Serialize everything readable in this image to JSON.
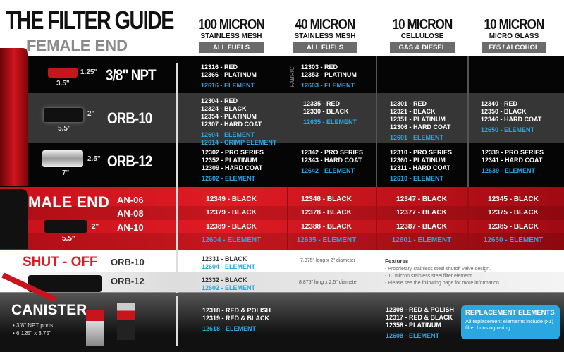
{
  "header": {
    "title": "THE FILTER GUIDE",
    "subtitle": "FEMALE END"
  },
  "columns": [
    {
      "micron": "100 MICRON",
      "media": "STAINLESS MESH",
      "fuel": "ALL FUELS"
    },
    {
      "micron": "40 MICRON",
      "media": "STAINLESS MESH",
      "fuel": "ALL FUELS"
    },
    {
      "micron": "10 MICRON",
      "media": "CELLULOSE",
      "fuel": "GAS & DIESEL"
    },
    {
      "micron": "10 MICRON",
      "media": "MICRO GLASS",
      "fuel": "E85 / ALCOHOL"
    }
  ],
  "female_rows": [
    {
      "label": "3/8\" NPT",
      "height": "1.25\"",
      "length": "3.5\"",
      "fabric_label": "FABRIC",
      "cells": [
        {
          "items": [
            "12316 - RED",
            "12366 - PLATINUM"
          ],
          "elements": [
            "12616 - ELEMENT"
          ]
        },
        {
          "items": [
            "12303 - RED",
            "12353 - PLATINUM"
          ],
          "elements": [
            "12603 - ELEMENT"
          ]
        },
        {
          "items": [],
          "elements": []
        },
        {
          "items": [],
          "elements": []
        }
      ]
    },
    {
      "label": "ORB-10",
      "height": "2\"",
      "length": "5.5\"",
      "cells": [
        {
          "items": [
            "12304 - RED",
            "12324 - BLACK",
            "12354 - PLATINUM",
            "12307 - HARD COAT"
          ],
          "elements": [
            "12604 - ELEMENT",
            "12614 - CRIMP ELEMENT"
          ]
        },
        {
          "items": [
            "12335 - RED",
            "12330 - BLACK"
          ],
          "elements": [
            "12635 - ELEMENT"
          ]
        },
        {
          "items": [
            "12301 - RED",
            "12321 - BLACK",
            "12351 - PLATINUM",
            "12306 - HARD COAT"
          ],
          "elements": [
            "12601 - ELEMENT"
          ]
        },
        {
          "items": [
            "12340 - RED",
            "12350 - BLACK",
            "12346 - HARD COAT"
          ],
          "elements": [
            "12650 - ELEMENT"
          ]
        }
      ]
    },
    {
      "label": "ORB-12",
      "height": "2.5\"",
      "length": "7\"",
      "cells": [
        {
          "items": [
            "12302 - PRO SERIES",
            "12352 - PLATINUM",
            "12309 - HARD COAT"
          ],
          "elements": [
            "12602 - ELEMENT"
          ]
        },
        {
          "items": [
            "12342 - PRO SERIES",
            "12343 - HARD COAT"
          ],
          "elements": [
            "12642 - ELEMENT"
          ]
        },
        {
          "items": [
            "12310 - PRO SERIES",
            "12360 - PLATINUM",
            "12311 - HARD COAT"
          ],
          "elements": [
            "12610 - ELEMENT"
          ]
        },
        {
          "items": [
            "12339 - PRO SERIES",
            "12341 - HARD COAT"
          ],
          "elements": [
            "12639 - ELEMENT"
          ]
        }
      ]
    }
  ],
  "male": {
    "title": "MALE END",
    "height": "2\"",
    "length": "5.5\"",
    "rows": [
      {
        "label": "AN-06",
        "values": [
          "12349 - BLACK",
          "12348 - BLACK",
          "12347 - BLACK",
          "12345 - BLACK"
        ]
      },
      {
        "label": "AN-08",
        "values": [
          "12379 - BLACK",
          "12378 - BLACK",
          "12377 - BLACK",
          "12375 - BLACK"
        ]
      },
      {
        "label": "AN-10",
        "values": [
          "12389 - BLACK",
          "12388 - BLACK",
          "12387 - BLACK",
          "12385 - BLACK"
        ]
      },
      {
        "label": "",
        "values": [
          "12604 - ELEMENT",
          "12635 - ELEMENT",
          "12601 - ELEMENT",
          "12650 - ELEMENT"
        ]
      }
    ]
  },
  "shutoff": {
    "title": "SHUT - OFF",
    "rows": [
      {
        "label": "ORB-10",
        "item": "12331 - BLACK",
        "element": "12604 - ELEMENT",
        "size": "7.375\" long x 2\" diameter"
      },
      {
        "label": "ORB-12",
        "item": "12332 - BLACK",
        "element": "12602 - ELEMENT",
        "size": "8.875\" long x 2.5\" diameter"
      }
    ],
    "features_title": "Features",
    "features": [
      "- Proprietary stainless steel shutoff valve design.",
      "- 10 micron stainless steel filter element.",
      "- Please see the following page for more information"
    ]
  },
  "canister": {
    "title": "CANISTER",
    "notes": [
      "• 3/8\" NPT ports.",
      "• 6.125\" x 3.75\""
    ],
    "col1": {
      "items": [
        "12318 - RED & POLISH",
        "12319 - RED & BLACK"
      ],
      "elements": [
        "12618 - ELEMENT"
      ]
    },
    "col3": {
      "items": [
        "12308 - RED & POLISH",
        "12317 - RED & BLACK",
        "12358 - PLATINUM"
      ],
      "elements": [
        "12608 - ELEMENT"
      ]
    }
  },
  "replacement": {
    "title": "REPLACEMENT ELEMENTS",
    "text": "All replacement elements include (x1) filter housing o-ring"
  },
  "colors": {
    "red": "#d8141c",
    "blue": "#2aa6e0",
    "black": "#000000"
  }
}
